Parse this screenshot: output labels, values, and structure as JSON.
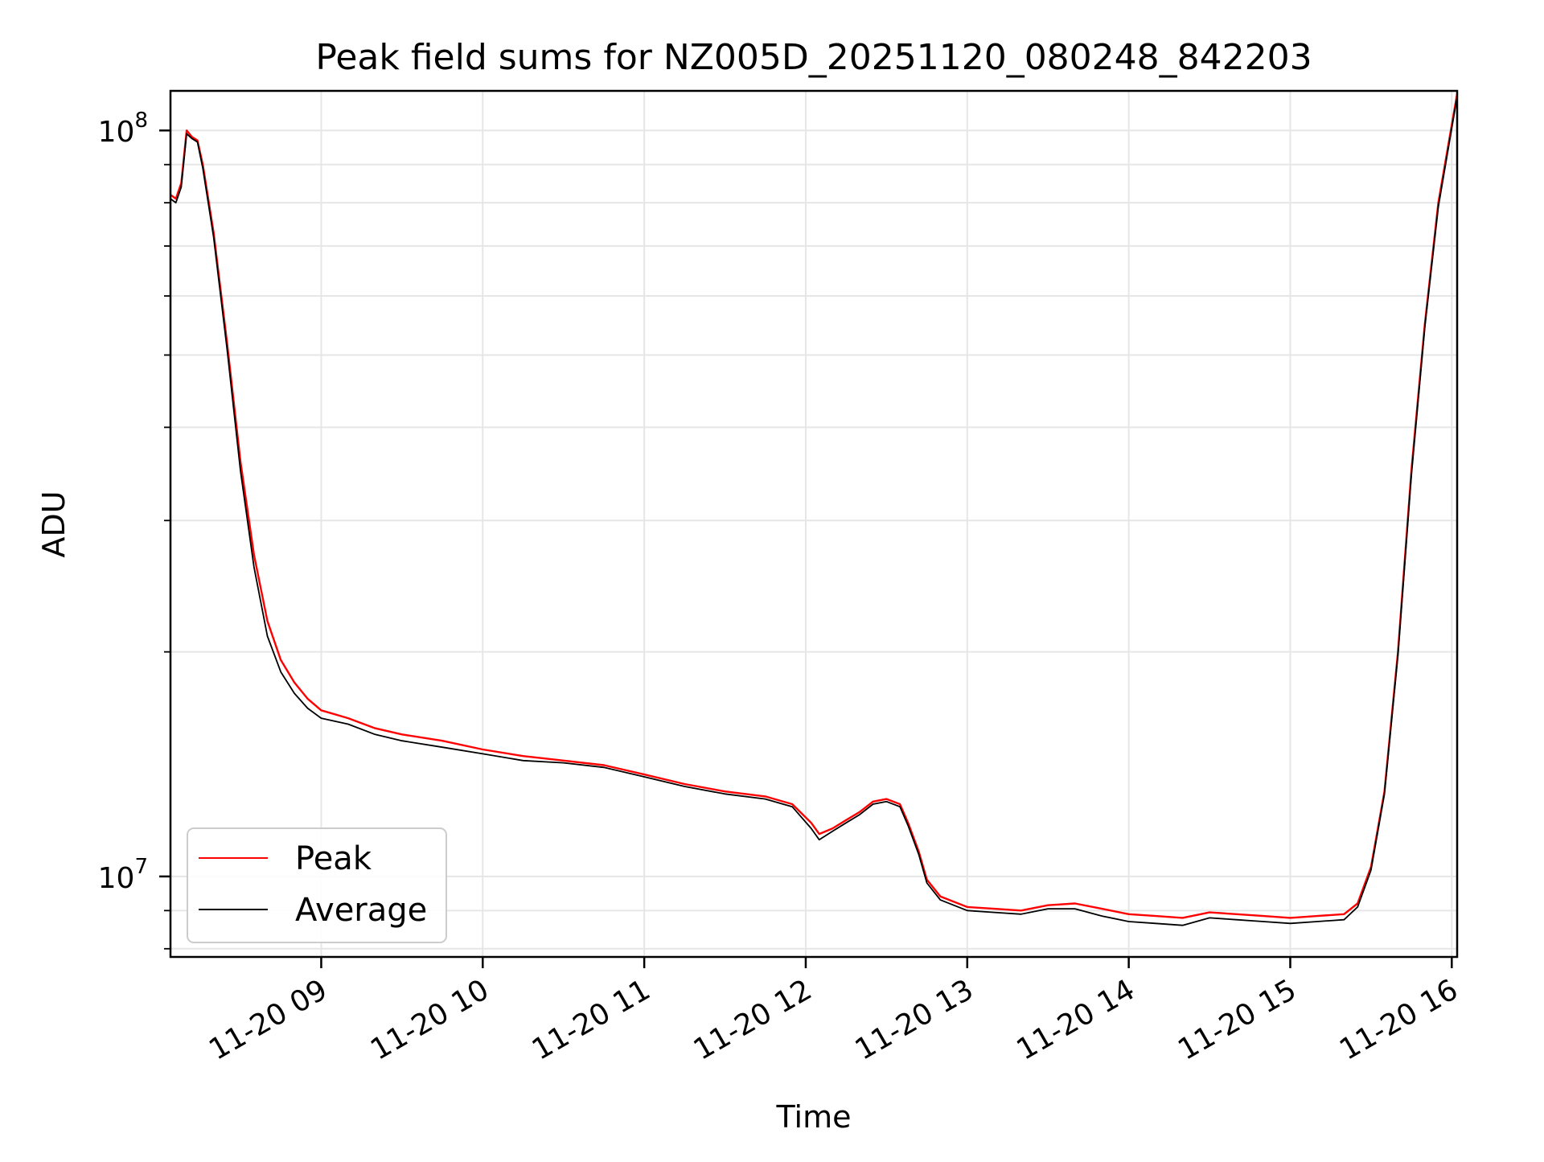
{
  "chart_data": {
    "type": "line",
    "title": "Peak field sums for NZ005D_20251120_080248_842203",
    "xlabel": "Time",
    "ylabel": "ADU",
    "y_scale": "log",
    "grid": true,
    "legend_position": "bottom-left",
    "xlim": [
      "2025-11-20 08:04",
      "2025-11-20 16:02"
    ],
    "ylim": [
      7800000,
      113000000
    ],
    "x_ticks": [
      "2025-11-20 09:00",
      "2025-11-20 10:00",
      "2025-11-20 11:00",
      "2025-11-20 12:00",
      "2025-11-20 13:00",
      "2025-11-20 14:00",
      "2025-11-20 15:00",
      "2025-11-20 16:00"
    ],
    "x_tick_labels": [
      "11-20 09",
      "11-20 10",
      "11-20 11",
      "11-20 12",
      "11-20 13",
      "11-20 14",
      "11-20 15",
      "11-20 16"
    ],
    "y_tick_values": [
      10000000,
      100000000
    ],
    "y_tick_labels": [
      {
        "base": "10",
        "exp": "7"
      },
      {
        "base": "10",
        "exp": "8"
      }
    ],
    "x": [
      "2025-11-20 08:04",
      "2025-11-20 08:06",
      "2025-11-20 08:08",
      "2025-11-20 08:10",
      "2025-11-20 08:12",
      "2025-11-20 08:14",
      "2025-11-20 08:16",
      "2025-11-20 08:20",
      "2025-11-20 08:25",
      "2025-11-20 08:30",
      "2025-11-20 08:35",
      "2025-11-20 08:40",
      "2025-11-20 08:45",
      "2025-11-20 08:50",
      "2025-11-20 08:55",
      "2025-11-20 09:00",
      "2025-11-20 09:10",
      "2025-11-20 09:20",
      "2025-11-20 09:30",
      "2025-11-20 09:45",
      "2025-11-20 10:00",
      "2025-11-20 10:15",
      "2025-11-20 10:30",
      "2025-11-20 10:45",
      "2025-11-20 11:00",
      "2025-11-20 11:15",
      "2025-11-20 11:30",
      "2025-11-20 11:45",
      "2025-11-20 11:55",
      "2025-11-20 12:02",
      "2025-11-20 12:05",
      "2025-11-20 12:10",
      "2025-11-20 12:15",
      "2025-11-20 12:20",
      "2025-11-20 12:25",
      "2025-11-20 12:30",
      "2025-11-20 12:35",
      "2025-11-20 12:38",
      "2025-11-20 12:42",
      "2025-11-20 12:45",
      "2025-11-20 12:50",
      "2025-11-20 13:00",
      "2025-11-20 13:10",
      "2025-11-20 13:20",
      "2025-11-20 13:30",
      "2025-11-20 13:40",
      "2025-11-20 13:50",
      "2025-11-20 14:00",
      "2025-11-20 14:10",
      "2025-11-20 14:20",
      "2025-11-20 14:30",
      "2025-11-20 14:40",
      "2025-11-20 14:50",
      "2025-11-20 15:00",
      "2025-11-20 15:10",
      "2025-11-20 15:20",
      "2025-11-20 15:25",
      "2025-11-20 15:30",
      "2025-11-20 15:35",
      "2025-11-20 15:40",
      "2025-11-20 15:45",
      "2025-11-20 15:50",
      "2025-11-20 15:55",
      "2025-11-20 16:02"
    ],
    "series": [
      {
        "name": "Peak",
        "color": "#ff0000",
        "values": [
          82000000,
          81000000,
          85000000,
          100000000,
          98000000,
          97000000,
          90000000,
          73000000,
          52000000,
          36000000,
          27000000,
          22000000,
          19500000,
          18200000,
          17300000,
          16700000,
          16300000,
          15800000,
          15500000,
          15200000,
          14800000,
          14500000,
          14300000,
          14100000,
          13700000,
          13300000,
          13000000,
          12800000,
          12500000,
          11800000,
          11400000,
          11600000,
          11900000,
          12200000,
          12600000,
          12700000,
          12500000,
          11800000,
          10800000,
          9900000,
          9400000,
          9100000,
          9050000,
          9000000,
          9150000,
          9200000,
          9050000,
          8900000,
          8850000,
          8800000,
          8950000,
          8900000,
          8850000,
          8800000,
          8850000,
          8900000,
          9200000,
          10300000,
          13000000,
          20000000,
          35000000,
          55000000,
          80000000,
          112000000
        ]
      },
      {
        "name": "Average",
        "color": "#000000",
        "values": [
          81000000,
          80000000,
          84000000,
          99000000,
          97500000,
          96500000,
          89000000,
          72000000,
          51000000,
          35000000,
          26000000,
          21000000,
          18800000,
          17600000,
          16800000,
          16300000,
          16000000,
          15500000,
          15200000,
          14900000,
          14600000,
          14300000,
          14200000,
          14000000,
          13600000,
          13200000,
          12900000,
          12700000,
          12400000,
          11600000,
          11200000,
          11500000,
          11800000,
          12100000,
          12500000,
          12600000,
          12400000,
          11700000,
          10700000,
          9800000,
          9300000,
          9000000,
          8950000,
          8900000,
          9050000,
          9050000,
          8850000,
          8700000,
          8650000,
          8600000,
          8800000,
          8750000,
          8700000,
          8650000,
          8700000,
          8750000,
          9100000,
          10200000,
          12900000,
          19800000,
          34500000,
          54500000,
          79000000,
          111000000
        ]
      }
    ],
    "annotations": []
  }
}
